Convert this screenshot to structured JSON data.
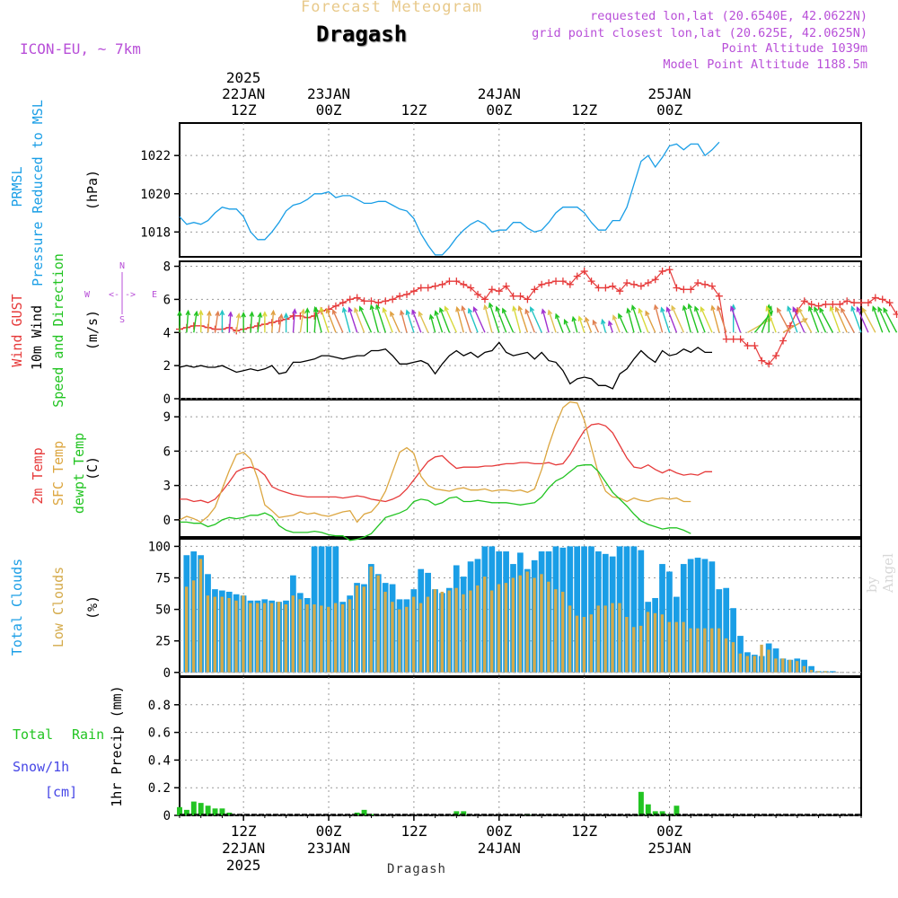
{
  "header": {
    "supertitle": "Forecast Meteogram",
    "station": "Dragash",
    "model": "ICON-EU, ~ 7km",
    "requested": "requested lon,lat (20.6540E, 42.0622N)",
    "gridpoint": "grid point closest lon,lat (20.625E, 42.0625N)",
    "point_altitude": "Point Altitude 1039m",
    "model_altitude": "Model Point Altitude 1188.5m",
    "footer_station": "Dragash",
    "credit": "by Angel"
  },
  "colors": {
    "pressure": "#1a9ee6",
    "gust": "#e63a3a",
    "wind": "#000000",
    "temp2m": "#e63a3a",
    "sfc": "#dca640",
    "dewpt": "#22c422",
    "total_clouds": "#1a9ee6",
    "low_clouds": "#d4aa4a",
    "rain": "#22c422",
    "snow": "#4646e6",
    "compass": "#b84fd8"
  },
  "chart_data": [
    {
      "type": "line",
      "panel": "pressure",
      "ylabels": [
        "PRMSL",
        "Pressure Reduced to MSL"
      ],
      "unit": "(hPa)",
      "ylim": [
        1016.7,
        1023.7
      ],
      "yticks": [
        1018,
        1020,
        1022
      ],
      "x_start_hour": 3,
      "x_step_hours": 1,
      "series": [
        {
          "values": [
            1018.8,
            1018.4,
            1018.5,
            1018.4,
            1018.6,
            1019.0,
            1019.3,
            1019.2,
            1019.2,
            1018.8,
            1018.0,
            1017.6,
            1017.6,
            1018.0,
            1018.5,
            1019.1,
            1019.4,
            1019.5,
            1019.7,
            1020.0,
            1020.0,
            1020.1,
            1019.8,
            1019.9,
            1019.9,
            1019.7,
            1019.5,
            1019.5,
            1019.6,
            1019.6,
            1019.4,
            1019.2,
            1019.1,
            1018.7,
            1017.9,
            1017.3,
            1016.8,
            1016.8,
            1017.2,
            1017.7,
            1018.1,
            1018.4,
            1018.6,
            1018.4,
            1018.0,
            1018.1,
            1018.1,
            1018.5,
            1018.5,
            1018.2,
            1018.0,
            1018.1,
            1018.5,
            1019.0,
            1019.3,
            1019.3,
            1019.3,
            1019.0,
            1018.5,
            1018.1,
            1018.1,
            1018.6,
            1018.6,
            1019.3,
            1020.5,
            1021.7,
            1022.0,
            1021.4,
            1021.9,
            1022.5,
            1022.6,
            1022.3,
            1022.6,
            1022.6,
            1022.0,
            1022.3,
            1022.7
          ]
        }
      ]
    },
    {
      "type": "line",
      "panel": "wind",
      "ylabels": [
        "Wind GUST",
        "10m Wind",
        "Speed and Direction"
      ],
      "unit": "(m/s)",
      "compass": {
        "n": "N",
        "s": "S",
        "e": "E",
        "w": "W",
        "arrows": "<-|->"
      },
      "ylim": [
        0,
        8.3
      ],
      "yticks": [
        0,
        2,
        4,
        6,
        8
      ],
      "x_start_hour": 3,
      "x_step_hours": 1,
      "series": [
        {
          "name": "Wind GUST",
          "values": [
            4.2,
            4.3,
            4.4,
            4.4,
            4.3,
            4.2,
            4.2,
            4.3,
            4.1,
            4.2,
            4.3,
            4.4,
            4.5,
            4.6,
            4.7,
            4.8,
            5.0,
            5.0,
            4.9,
            5.0,
            5.3,
            5.4,
            5.6,
            5.8,
            6.0,
            6.1,
            5.9,
            5.9,
            5.8,
            5.9,
            6.0,
            6.2,
            6.3,
            6.5,
            6.7,
            6.7,
            6.8,
            6.9,
            7.1,
            7.1,
            6.9,
            6.7,
            6.3,
            6.0,
            6.6,
            6.5,
            6.8,
            6.2,
            6.2,
            6.0,
            6.6,
            6.9,
            7.0,
            7.1,
            7.1,
            6.9,
            7.4,
            7.7,
            7.1,
            6.7,
            6.7,
            6.8,
            6.5,
            7.0,
            6.9,
            6.8,
            7.0,
            7.2,
            7.7,
            7.8,
            6.7,
            6.6,
            6.6,
            7.0,
            6.9,
            6.8,
            6.2,
            3.6,
            3.6,
            3.6,
            3.2,
            3.2,
            2.3,
            2.1,
            2.6,
            3.5,
            4.4,
            5.3,
            5.9,
            5.7,
            5.6,
            5.7,
            5.7,
            5.7,
            5.9,
            5.8,
            5.8,
            5.8,
            6.1,
            6.0,
            5.8,
            5.1
          ]
        },
        {
          "name": "10m Wind",
          "values": [
            1.9,
            2.0,
            1.9,
            2.0,
            1.9,
            1.9,
            2.0,
            1.8,
            1.6,
            1.7,
            1.8,
            1.7,
            1.8,
            2.0,
            1.5,
            1.6,
            2.2,
            2.2,
            2.3,
            2.4,
            2.6,
            2.6,
            2.5,
            2.4,
            2.5,
            2.6,
            2.6,
            2.9,
            2.9,
            3.0,
            2.6,
            2.1,
            2.1,
            2.2,
            2.3,
            2.1,
            1.5,
            2.1,
            2.6,
            2.9,
            2.6,
            2.8,
            2.5,
            2.8,
            2.9,
            3.4,
            2.8,
            2.6,
            2.7,
            2.8,
            2.4,
            2.8,
            2.3,
            2.2,
            1.7,
            0.9,
            1.2,
            1.3,
            1.2,
            0.8,
            0.8,
            0.6,
            1.5,
            1.8,
            2.4,
            2.9,
            2.5,
            2.2,
            2.9,
            2.6,
            2.7,
            3.0,
            2.8,
            3.1,
            2.8,
            2.8
          ]
        }
      ]
    },
    {
      "type": "line",
      "panel": "temperature",
      "ylabels": [
        "2m Temp",
        "SFC Temp",
        "dewpt Temp"
      ],
      "unit": "(C)",
      "ylim": [
        -1.5,
        10.5
      ],
      "yticks": [
        0,
        3,
        6,
        9
      ],
      "x_start_hour": 3,
      "x_step_hours": 1,
      "series": [
        {
          "name": "2m Temp",
          "values": [
            1.8,
            1.8,
            1.6,
            1.7,
            1.5,
            1.8,
            2.5,
            3.3,
            4.2,
            4.5,
            4.6,
            4.4,
            3.9,
            2.9,
            2.6,
            2.4,
            2.2,
            2.1,
            2.0,
            2.0,
            2.0,
            2.0,
            2.0,
            1.9,
            2.0,
            2.1,
            2.0,
            1.8,
            1.7,
            1.6,
            1.8,
            2.1,
            2.7,
            3.5,
            4.3,
            5.1,
            5.5,
            5.6,
            5.0,
            4.5,
            4.6,
            4.6,
            4.6,
            4.7,
            4.7,
            4.8,
            4.9,
            4.9,
            5.0,
            5.0,
            4.9,
            4.9,
            5.0,
            4.8,
            4.9,
            5.7,
            6.8,
            7.8,
            8.3,
            8.4,
            8.2,
            7.6,
            6.5,
            5.4,
            4.6,
            4.5,
            4.8,
            4.4,
            4.1,
            4.4,
            4.1,
            3.9,
            4.0,
            3.9,
            4.2,
            4.2
          ]
        },
        {
          "name": "SFC Temp",
          "values": [
            0.0,
            0.3,
            0.1,
            -0.2,
            0.3,
            1.1,
            2.7,
            4.3,
            5.7,
            5.9,
            5.3,
            3.6,
            1.3,
            0.8,
            0.2,
            0.3,
            0.4,
            0.7,
            0.5,
            0.6,
            0.4,
            0.3,
            0.5,
            0.7,
            0.8,
            -0.2,
            0.5,
            0.7,
            1.4,
            2.5,
            4.2,
            5.9,
            6.3,
            5.8,
            3.8,
            3.0,
            2.7,
            2.6,
            2.5,
            2.7,
            2.8,
            2.6,
            2.6,
            2.7,
            2.5,
            2.6,
            2.6,
            2.5,
            2.6,
            2.4,
            2.7,
            4.4,
            6.5,
            8.3,
            9.8,
            10.3,
            10.2,
            8.7,
            6.3,
            4.0,
            2.5,
            2.0,
            1.9,
            1.6,
            1.9,
            1.7,
            1.6,
            1.8,
            1.9,
            1.8,
            1.9,
            1.6,
            1.6
          ]
        },
        {
          "name": "dewpt Temp",
          "values": [
            -0.2,
            -0.2,
            -0.3,
            -0.3,
            -0.6,
            -0.4,
            0.0,
            0.2,
            0.1,
            0.2,
            0.4,
            0.4,
            0.6,
            0.3,
            -0.5,
            -0.9,
            -1.1,
            -1.1,
            -1.1,
            -1.0,
            -1.1,
            -1.3,
            -1.4,
            -1.4,
            -1.8,
            -1.7,
            -1.5,
            -1.2,
            -0.5,
            0.2,
            0.4,
            0.6,
            0.9,
            1.6,
            1.8,
            1.7,
            1.3,
            1.5,
            1.9,
            2.0,
            1.6,
            1.6,
            1.7,
            1.6,
            1.5,
            1.5,
            1.5,
            1.4,
            1.3,
            1.4,
            1.5,
            2.0,
            2.8,
            3.4,
            3.7,
            4.2,
            4.7,
            4.8,
            4.8,
            4.2,
            3.3,
            2.4,
            1.8,
            1.2,
            0.5,
            -0.1,
            -0.4,
            -0.6,
            -0.8,
            -0.7,
            -0.7,
            -0.9,
            -1.2
          ]
        }
      ]
    },
    {
      "type": "bar",
      "panel": "clouds",
      "ylabels": [
        "Total Clouds",
        "Low Clouds"
      ],
      "unit": "(%)",
      "ylim": [
        -3,
        106
      ],
      "yticks": [
        0,
        25,
        50,
        75,
        100
      ],
      "x_start_hour": 3,
      "x_step_hours": 1,
      "series": [
        {
          "name": "Total Clouds",
          "values": [
            97,
            93,
            96,
            93,
            78,
            66,
            65,
            64,
            62,
            61,
            57,
            57,
            58,
            57,
            56,
            57,
            77,
            63,
            59,
            100,
            100,
            100,
            100,
            56,
            61,
            71,
            70,
            86,
            78,
            71,
            70,
            58,
            58,
            66,
            82,
            79,
            66,
            63,
            67,
            85,
            76,
            88,
            90,
            100,
            100,
            96,
            96,
            86,
            95,
            82,
            89,
            96,
            96,
            100,
            99,
            100,
            100,
            100,
            100,
            96,
            94,
            92,
            100,
            100,
            100,
            97,
            56,
            59,
            86,
            80,
            60,
            86,
            90,
            91,
            90,
            88,
            66,
            67,
            51,
            29,
            16,
            14,
            13,
            23,
            19,
            11,
            10,
            11,
            10,
            5,
            1,
            1,
            1,
            0,
            0
          ]
        },
        {
          "name": "Low Clouds",
          "values": [
            82,
            68,
            73,
            90,
            61,
            60,
            60,
            59,
            57,
            61,
            55,
            55,
            55,
            55,
            56,
            54,
            61,
            58,
            54,
            54,
            53,
            52,
            55,
            54,
            58,
            69,
            68,
            84,
            77,
            64,
            56,
            50,
            52,
            60,
            55,
            60,
            66,
            64,
            65,
            67,
            62,
            65,
            69,
            76,
            65,
            70,
            71,
            75,
            77,
            80,
            75,
            78,
            72,
            66,
            64,
            53,
            45,
            44,
            46,
            53,
            53,
            55,
            55,
            44,
            36,
            37,
            48,
            47,
            46,
            40,
            40,
            40,
            35,
            35,
            35,
            35,
            35,
            27,
            24,
            15,
            13,
            13,
            22,
            18,
            11,
            11,
            10,
            9,
            5,
            2,
            1,
            1,
            0,
            0
          ]
        }
      ]
    },
    {
      "type": "bar",
      "panel": "precipitation",
      "ylabels": [
        "Total",
        "Rain",
        "Snow/1h",
        "[cm]"
      ],
      "unit": "1hr Precip (mm)",
      "ylim": [
        0,
        1.0
      ],
      "yticks": [
        0,
        0.2,
        0.4,
        0.6,
        0.8
      ],
      "ytick_labels": [
        "0",
        "0.2",
        "0.4",
        "0.6",
        "0.8"
      ],
      "x_start_hour": 3,
      "x_step_hours": 1,
      "series": [
        {
          "name": "Rain",
          "values": [
            0.06,
            0.04,
            0.1,
            0.09,
            0.07,
            0.05,
            0.05,
            0.02,
            0,
            0,
            0,
            0,
            0,
            0,
            0,
            0,
            0,
            0,
            0,
            0,
            0,
            0,
            0,
            0,
            0,
            0.02,
            0.04,
            0.01,
            0,
            0,
            0,
            0,
            0,
            0,
            0,
            0,
            0,
            0,
            0,
            0.03,
            0.03,
            0,
            0,
            0,
            0,
            0,
            0,
            0,
            0,
            0.01,
            0,
            0,
            0,
            0,
            0,
            0,
            0,
            0,
            0,
            0,
            0,
            0,
            0,
            0,
            0,
            0.17,
            0.08,
            0.03,
            0.03,
            0.01,
            0.07,
            0,
            0,
            0,
            0,
            0,
            0,
            0,
            0,
            0,
            0,
            0,
            0,
            0,
            0,
            0,
            0,
            0,
            0,
            0,
            0,
            0,
            0,
            0,
            0
          ]
        },
        {
          "name": "Snow",
          "values": [
            0,
            0,
            0,
            0,
            0,
            0,
            0,
            0,
            0,
            0,
            0,
            0,
            0,
            0,
            0,
            0,
            0,
            0,
            0,
            0,
            0,
            0,
            0,
            0,
            0,
            0,
            0,
            0,
            0,
            0,
            0,
            0,
            0,
            0,
            0,
            0,
            0,
            0,
            0,
            0,
            0,
            0,
            0,
            0,
            0,
            0,
            0,
            0,
            0,
            0,
            0,
            0,
            0,
            0,
            0,
            0,
            0,
            0,
            0,
            0,
            0,
            0,
            0,
            0,
            0,
            0,
            0,
            0,
            0,
            0,
            0,
            0,
            0,
            0,
            0,
            0,
            0,
            0,
            0,
            0,
            0,
            0,
            0,
            0,
            0,
            0,
            0,
            0,
            0,
            0,
            0,
            0,
            0,
            0,
            0
          ]
        }
      ]
    }
  ],
  "time_axis": {
    "start_hour": 3,
    "end_hour": 99,
    "top_labels": [
      {
        "hour": 12,
        "lines": [
          "2025",
          "22JAN",
          "12Z"
        ]
      },
      {
        "hour": 24,
        "lines": [
          "23JAN",
          "00Z"
        ]
      },
      {
        "hour": 36,
        "lines": [
          "12Z"
        ]
      },
      {
        "hour": 48,
        "lines": [
          "24JAN",
          "00Z"
        ]
      },
      {
        "hour": 60,
        "lines": [
          "12Z"
        ]
      },
      {
        "hour": 72,
        "lines": [
          "25JAN",
          "00Z"
        ]
      }
    ],
    "bottom_labels": [
      {
        "hour": 12,
        "lines": [
          "12Z",
          "22JAN",
          "2025"
        ]
      },
      {
        "hour": 24,
        "lines": [
          "00Z",
          "23JAN"
        ]
      },
      {
        "hour": 36,
        "lines": [
          "12Z"
        ]
      },
      {
        "hour": 48,
        "lines": [
          "00Z",
          "24JAN"
        ]
      },
      {
        "hour": 60,
        "lines": [
          "12Z"
        ]
      },
      {
        "hour": 72,
        "lines": [
          "00Z",
          "25JAN"
        ]
      }
    ]
  }
}
